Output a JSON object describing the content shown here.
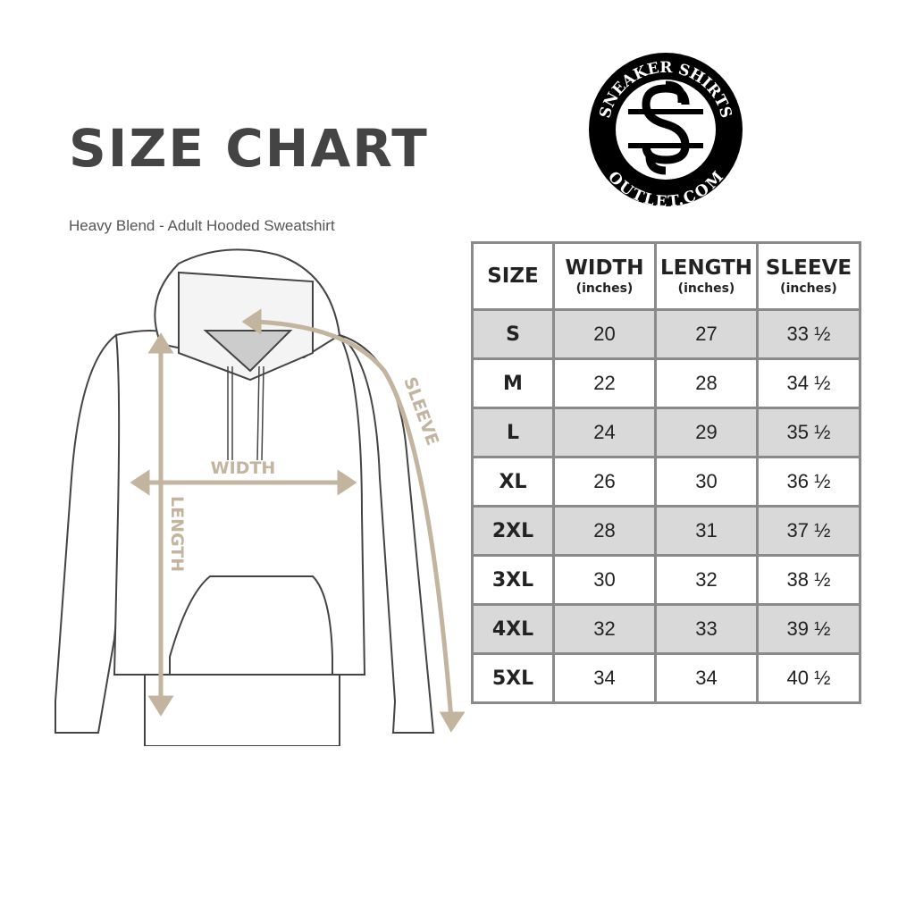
{
  "header": {
    "title": "SIZE CHART",
    "subtitle": "Heavy Blend - Adult Hooded Sweatshirt"
  },
  "logo": {
    "top_text": "SNEAKER SHIRTS",
    "bottom_text": "OUTLET.COM",
    "monogram": "SS"
  },
  "diagram": {
    "width_label": "WIDTH",
    "length_label": "LENGTH",
    "sleeve_label": "SLEEVE",
    "measure_color": "#c2b49f"
  },
  "table": {
    "columns": [
      {
        "label": "SIZE",
        "unit": ""
      },
      {
        "label": "WIDTH",
        "unit": "(inches)"
      },
      {
        "label": "LENGTH",
        "unit": "(inches)"
      },
      {
        "label": "SLEEVE",
        "unit": "(inches)"
      }
    ],
    "rows": [
      [
        "S",
        "20",
        "27",
        "33 ½"
      ],
      [
        "M",
        "22",
        "28",
        "34 ½"
      ],
      [
        "L",
        "24",
        "29",
        "35 ½"
      ],
      [
        "XL",
        "26",
        "30",
        "36 ½"
      ],
      [
        "2XL",
        "28",
        "31",
        "37 ½"
      ],
      [
        "3XL",
        "30",
        "32",
        "38 ½"
      ],
      [
        "4XL",
        "32",
        "33",
        "39 ½"
      ],
      [
        "5XL",
        "34",
        "34",
        "40 ½"
      ]
    ],
    "shade_color": "#d9d9d9"
  }
}
